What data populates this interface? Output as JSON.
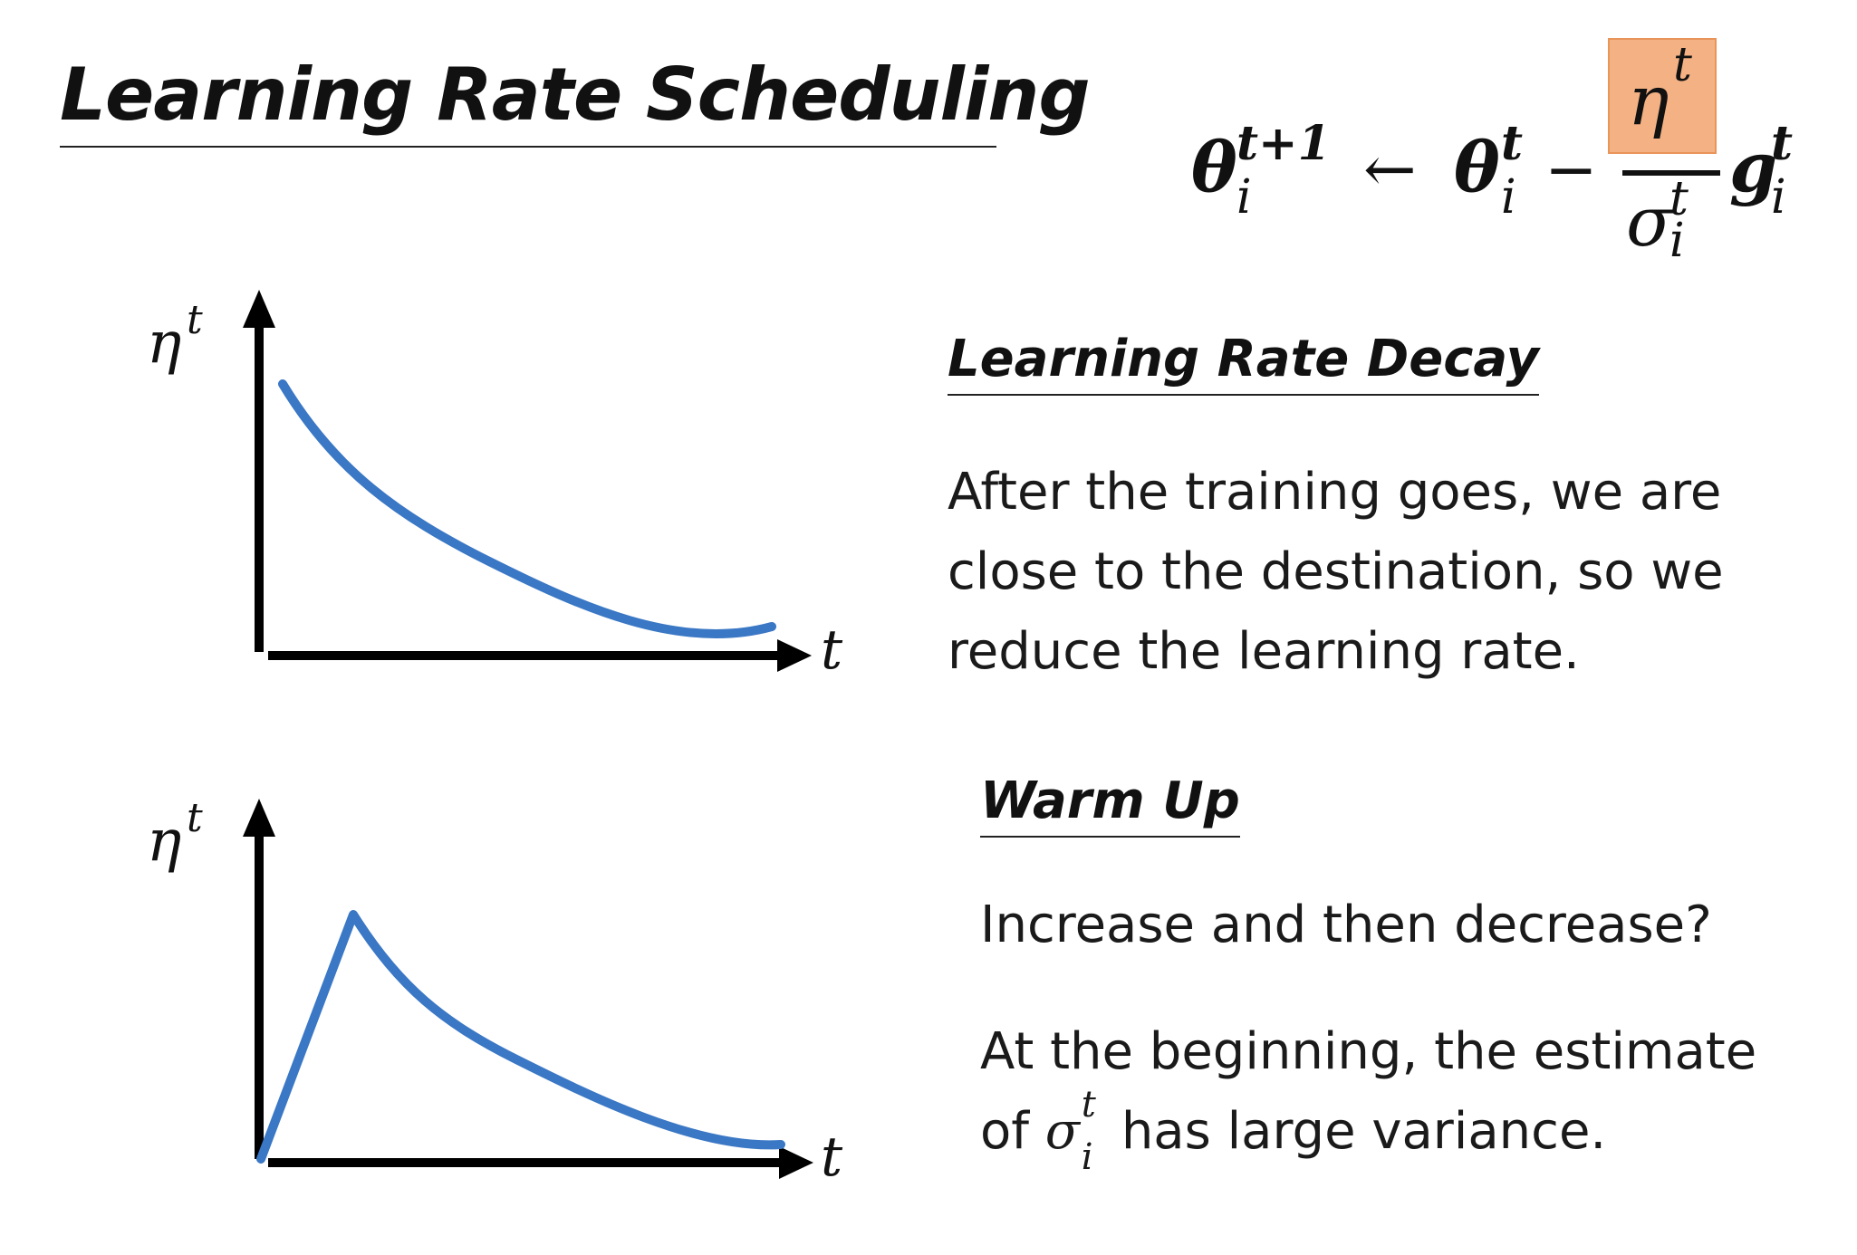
{
  "title": "Learning Rate Scheduling",
  "formula": {
    "theta": "θ",
    "t_plus_1": "t+1",
    "i": "i",
    "arrow": "←",
    "t": "t",
    "minus": "−",
    "eta": "η",
    "sigma": "σ",
    "g": "g",
    "highlight_color": "#f4b183"
  },
  "decay_graph": {
    "y_label": "η",
    "y_label_sup": "t",
    "x_label": "t",
    "curve_color": "#3a77c4"
  },
  "warmup_graph": {
    "y_label": "η",
    "y_label_sup": "t",
    "x_label": "t",
    "curve_color": "#3a77c4"
  },
  "decay_section": {
    "heading": "Learning Rate Decay",
    "lines": [
      "After the training goes, we are",
      "close to the destination, so we",
      "reduce the learning rate."
    ]
  },
  "warmup_section": {
    "heading": "Warm Up",
    "question": "Increase and then decrease?",
    "line1": "At the beginning, the estimate",
    "line2_prefix": "of ",
    "line2_sigma": "σ",
    "line2_sup": "t",
    "line2_sub": "i",
    "line2_suffix": " has large variance."
  }
}
